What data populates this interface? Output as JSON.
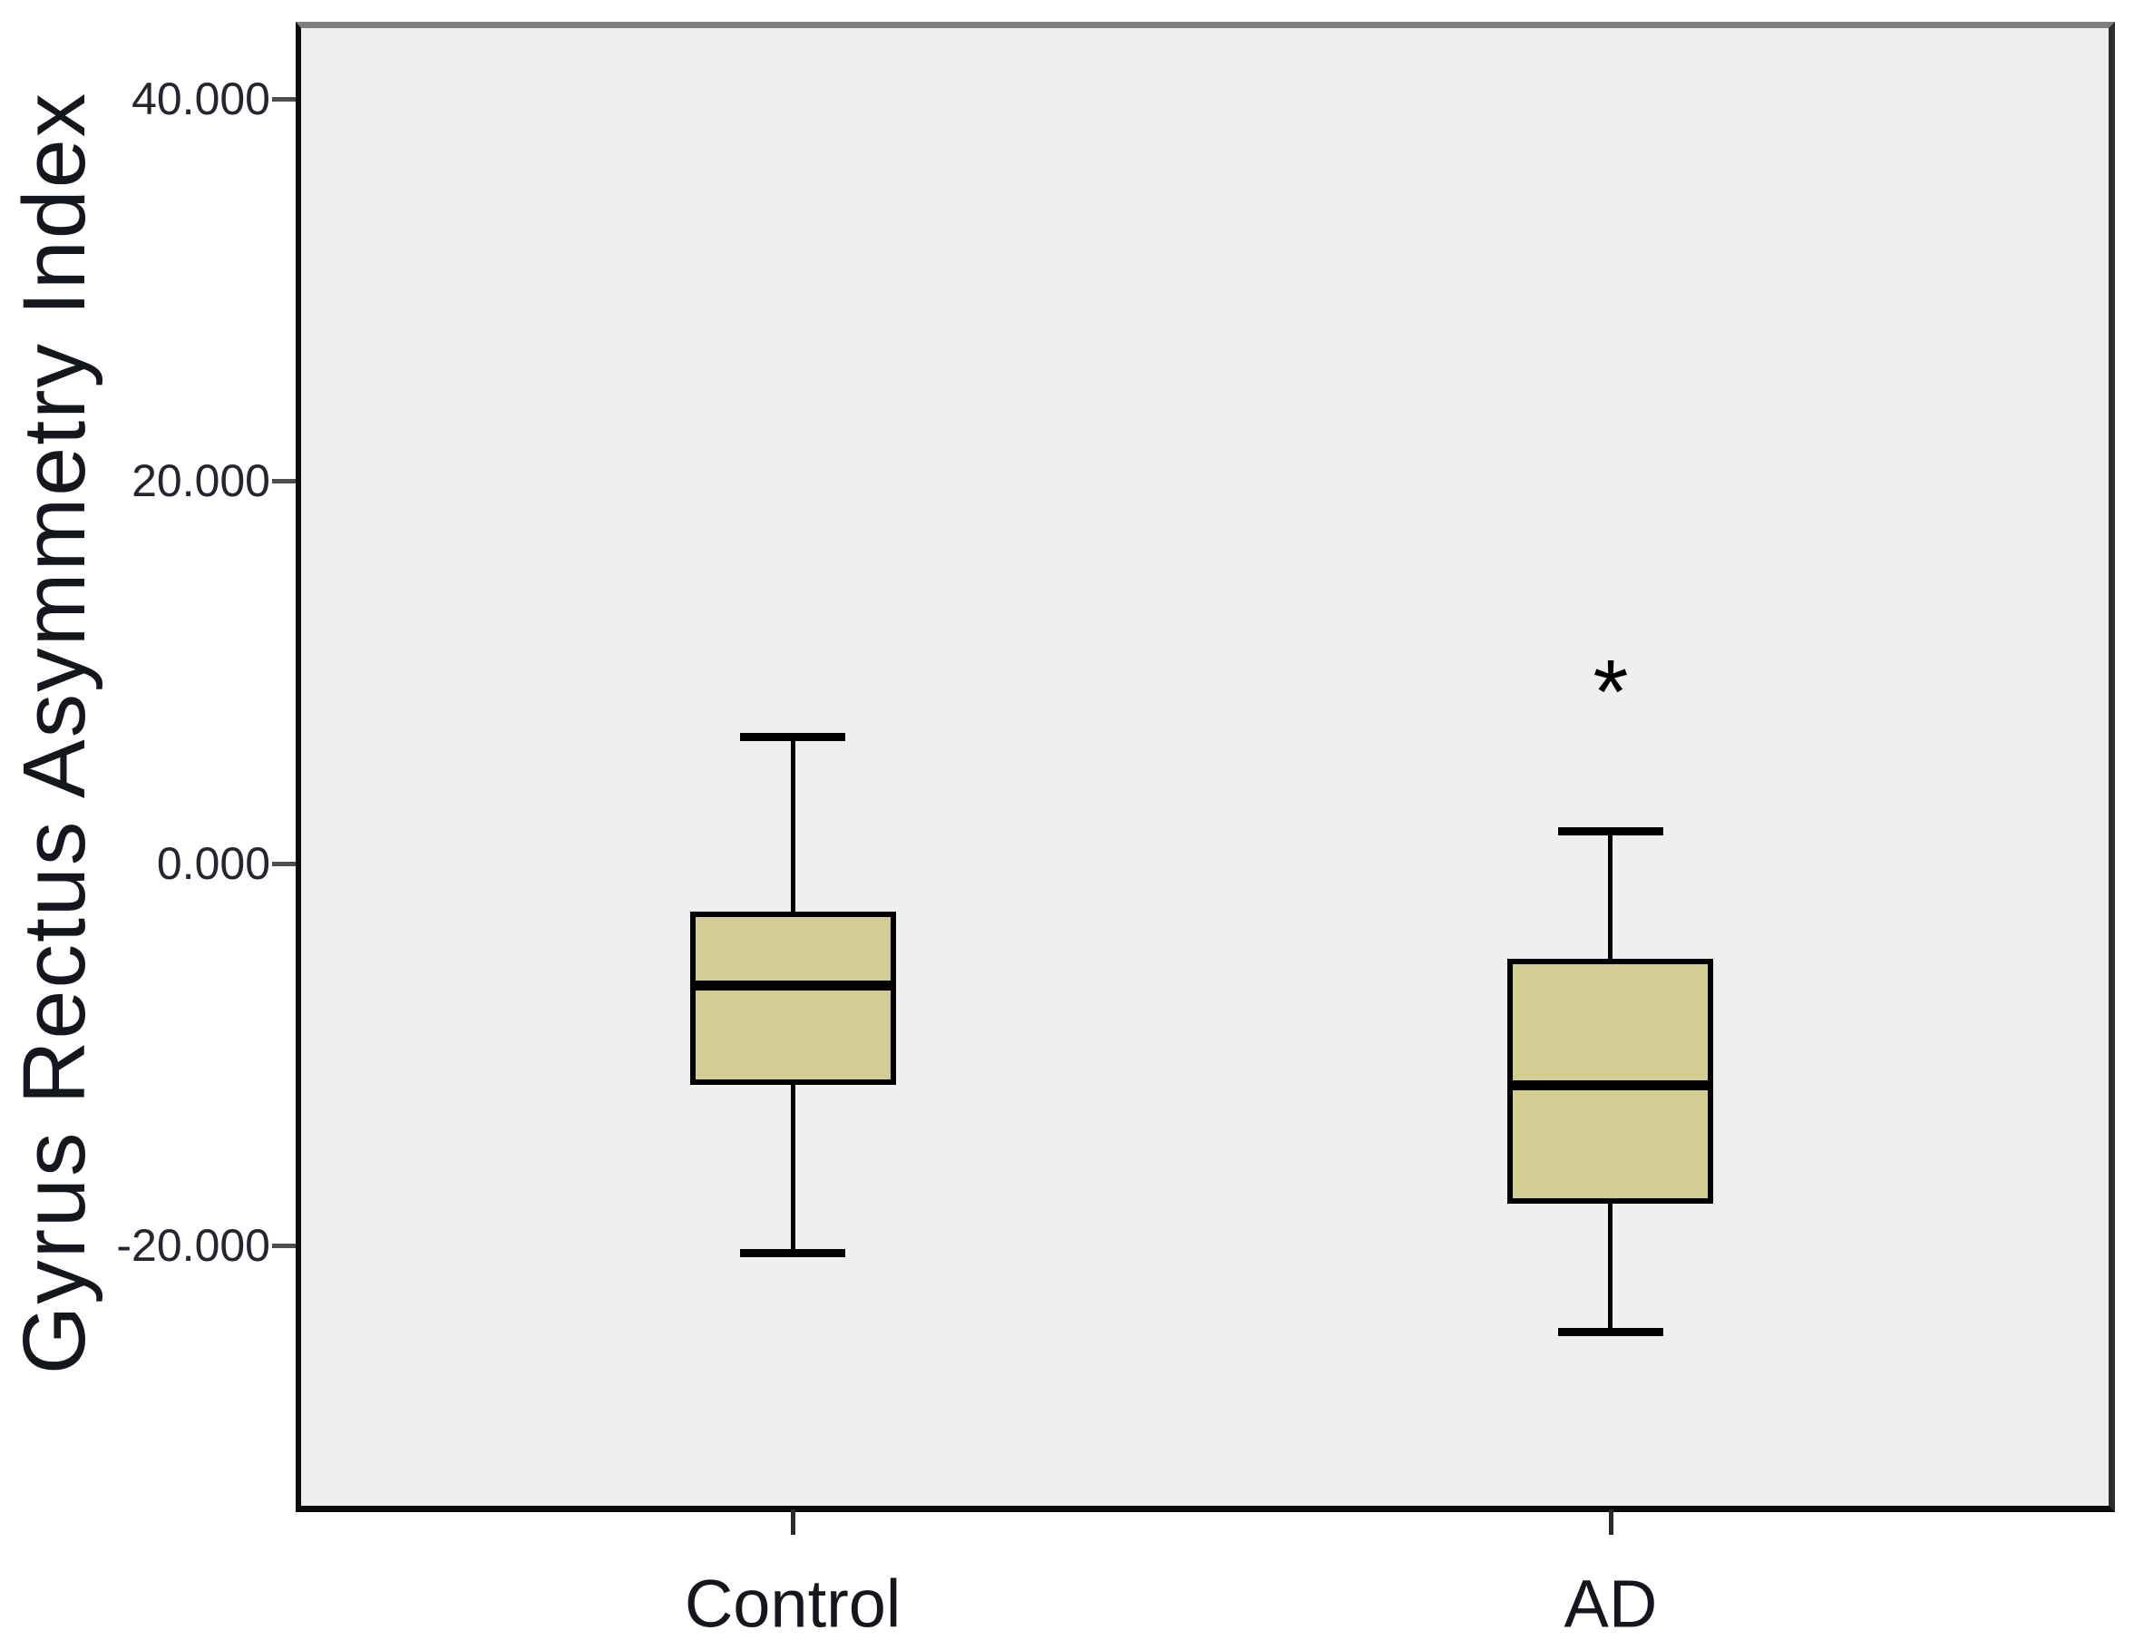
{
  "chart_data": {
    "type": "boxplot",
    "title": "",
    "xlabel": "",
    "ylabel": "Gyrus Rectus Asymmetry Index",
    "categories": [
      "Control",
      "AD"
    ],
    "y_ticks": [
      40,
      20,
      0,
      -20
    ],
    "y_tick_labels": [
      "40.000",
      "20.000",
      "0.000",
      "-20.000"
    ],
    "ylim": [
      -33.6,
      43.7
    ],
    "grid": false,
    "legend": "none",
    "series": [
      {
        "name": "Control",
        "whisker_low": -20.4,
        "q1": -11.6,
        "median": -6.4,
        "q3": -2.5,
        "whisker_high": 6.6,
        "outliers": []
      },
      {
        "name": "AD",
        "whisker_low": -24.5,
        "q1": -17.8,
        "median": -11.6,
        "q3": -5.0,
        "whisker_high": 1.7,
        "outliers": [
          {
            "value": 9.8,
            "marker": "*",
            "type": "extreme"
          }
        ]
      }
    ],
    "colors": {
      "box_fill": "#d3cc93",
      "box_border": "#000000",
      "plot_bg": "#efefef",
      "page_bg": "#ffffff",
      "frame_top": "#7f7f7f",
      "frame_right": "#2d2d2d",
      "frame_axis": "#0c0c0c",
      "text": "#15171e"
    }
  }
}
